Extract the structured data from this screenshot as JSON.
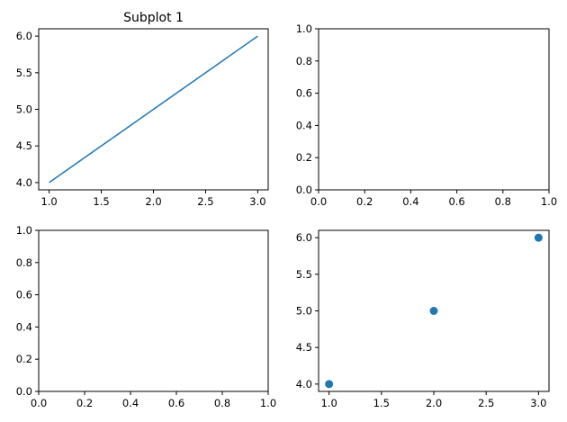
{
  "colors": {
    "series": "#1f77b4",
    "axes": "#000000",
    "background": "#ffffff"
  },
  "chart_data": [
    {
      "id": "subplot-1",
      "type": "line",
      "title": "Subplot 1",
      "xlabel": "",
      "ylabel": "",
      "grid": false,
      "xlim": [
        0.9,
        3.1
      ],
      "ylim": [
        3.9,
        6.1
      ],
      "xticks": [
        1.0,
        1.5,
        2.0,
        2.5,
        3.0
      ],
      "xtick_labels": [
        "1.0",
        "1.5",
        "2.0",
        "2.5",
        "3.0"
      ],
      "yticks": [
        4.0,
        4.5,
        5.0,
        5.5,
        6.0
      ],
      "ytick_labels": [
        "4.0",
        "4.5",
        "5.0",
        "5.5",
        "6.0"
      ],
      "series": [
        {
          "x": [
            1,
            2,
            3
          ],
          "y": [
            4,
            5,
            6
          ]
        }
      ]
    },
    {
      "id": "subplot-2",
      "type": "line",
      "title": "",
      "xlabel": "",
      "ylabel": "",
      "grid": false,
      "xlim": [
        0,
        1
      ],
      "ylim": [
        0,
        1
      ],
      "xticks": [
        0.0,
        0.2,
        0.4,
        0.6,
        0.8,
        1.0
      ],
      "xtick_labels": [
        "0.0",
        "0.2",
        "0.4",
        "0.6",
        "0.8",
        "1.0"
      ],
      "yticks": [
        0.0,
        0.2,
        0.4,
        0.6,
        0.8,
        1.0
      ],
      "ytick_labels": [
        "0.0",
        "0.2",
        "0.4",
        "0.6",
        "0.8",
        "1.0"
      ],
      "series": []
    },
    {
      "id": "subplot-3",
      "type": "line",
      "title": "",
      "xlabel": "",
      "ylabel": "",
      "grid": false,
      "xlim": [
        0,
        1
      ],
      "ylim": [
        0,
        1
      ],
      "xticks": [
        0.0,
        0.2,
        0.4,
        0.6,
        0.8,
        1.0
      ],
      "xtick_labels": [
        "0.0",
        "0.2",
        "0.4",
        "0.6",
        "0.8",
        "1.0"
      ],
      "yticks": [
        0.0,
        0.2,
        0.4,
        0.6,
        0.8,
        1.0
      ],
      "ytick_labels": [
        "0.0",
        "0.2",
        "0.4",
        "0.6",
        "0.8",
        "1.0"
      ],
      "series": []
    },
    {
      "id": "subplot-4",
      "type": "scatter",
      "title": "",
      "xlabel": "",
      "ylabel": "",
      "grid": false,
      "xlim": [
        0.9,
        3.1
      ],
      "ylim": [
        3.9,
        6.1
      ],
      "xticks": [
        1.0,
        1.5,
        2.0,
        2.5,
        3.0
      ],
      "xtick_labels": [
        "1.0",
        "1.5",
        "2.0",
        "2.5",
        "3.0"
      ],
      "yticks": [
        4.0,
        4.5,
        5.0,
        5.5,
        6.0
      ],
      "ytick_labels": [
        "4.0",
        "4.5",
        "5.0",
        "5.5",
        "6.0"
      ],
      "series": [
        {
          "x": [
            1,
            2,
            3
          ],
          "y": [
            4,
            5,
            6
          ]
        }
      ]
    }
  ]
}
